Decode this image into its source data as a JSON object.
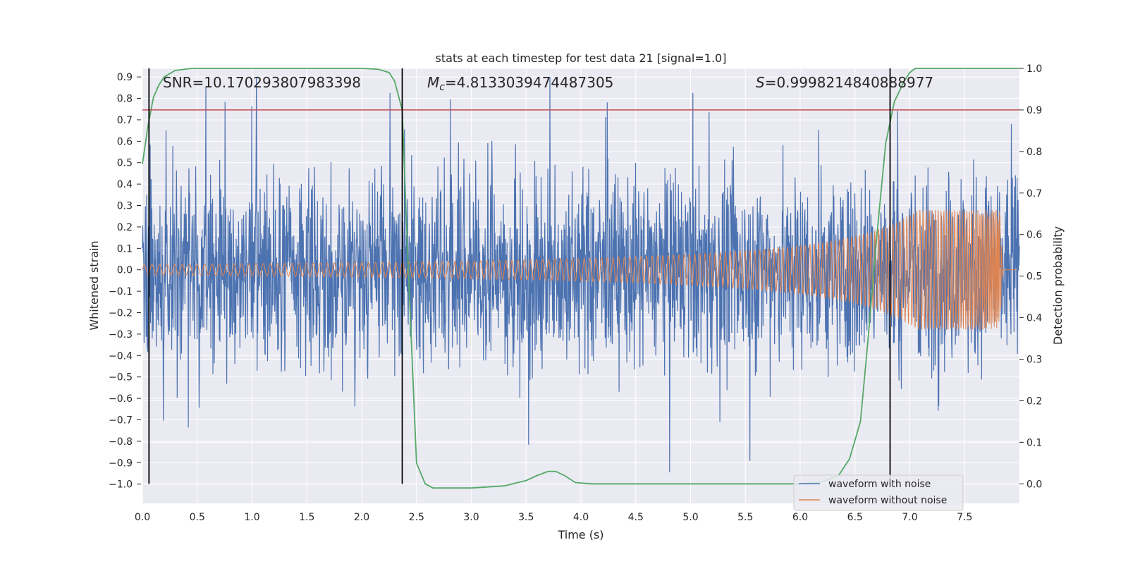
{
  "chart_data": {
    "type": "line",
    "title": "stats at each timestep for test data 21 [signal=1.0]",
    "xlabel": "Time (s)",
    "ylabel": "Whitened strain",
    "y2label": "Detection probability",
    "xlim": [
      0.0,
      8.0
    ],
    "ylim": [
      -1.09,
      0.94
    ],
    "y2lim": [
      -0.047,
      1.0
    ],
    "xticks": [
      0.0,
      0.5,
      1.0,
      1.5,
      2.0,
      2.5,
      3.0,
      3.5,
      4.0,
      4.5,
      5.0,
      5.5,
      6.0,
      6.5,
      7.0,
      7.5
    ],
    "xtick_labels": [
      "0.0",
      "0.5",
      "1.0",
      "1.5",
      "2.0",
      "2.5",
      "3.0",
      "3.5",
      "4.0",
      "4.5",
      "5.0",
      "5.5",
      "6.0",
      "6.5",
      "7.0",
      "7.5"
    ],
    "yticks": [
      0.9,
      0.8,
      0.7,
      0.6,
      0.5,
      0.4,
      0.3,
      0.2,
      0.1,
      0.0,
      -0.1,
      -0.2,
      -0.3,
      -0.4,
      -0.5,
      -0.6,
      -0.7,
      -0.8,
      -0.9,
      -1.0
    ],
    "ytick_labels": [
      "0.9",
      "0.8",
      "0.7",
      "0.6",
      "0.5",
      "0.4",
      "0.3",
      "0.2",
      "0.1",
      "0.0",
      "−0.1",
      "−0.2",
      "−0.3",
      "−0.4",
      "−0.5",
      "−0.6",
      "−0.7",
      "−0.8",
      "−0.9",
      "−1.0"
    ],
    "y2ticks": [
      1.0,
      0.9,
      0.8,
      0.7,
      0.6,
      0.5,
      0.4,
      0.3,
      0.2,
      0.1,
      0.0
    ],
    "y2tick_labels": [
      "1.0",
      "0.9",
      "0.8",
      "0.7",
      "0.6",
      "0.5",
      "0.4",
      "0.3",
      "0.2",
      "0.1",
      "0.0"
    ],
    "annotations": {
      "snr": "SNR=10.170293807983398",
      "mc_symbol": "M",
      "mc_sub": "c",
      "mc_value": "=4.8133039474487305",
      "s_symbol": "S",
      "s_value": "=0.9998214840888977"
    },
    "legend": [
      "waveform with noise",
      "waveform without noise"
    ],
    "legend_position": "lower-right",
    "vertical_lines_x": [
      0.06,
      2.37,
      6.82
    ],
    "threshold_probability": 0.9,
    "noise": {
      "name": "waveform with noise",
      "color": "#4c72b0",
      "amplitude_typical": 0.45,
      "amplitude_max": 0.9,
      "amplitude_min": -0.99
    },
    "chirp": {
      "name": "waveform without noise",
      "color": "#dd8452",
      "start_amplitude": 0.025,
      "peak_time": 7.82,
      "peak_amplitude": 0.28,
      "end_time": 7.85
    },
    "probability": {
      "name": "Detection probability",
      "color": "#55a868",
      "x": [
        0.0,
        0.05,
        0.1,
        0.15,
        0.2,
        0.3,
        0.45,
        1.0,
        2.0,
        2.15,
        2.25,
        2.3,
        2.37,
        2.42,
        2.5,
        2.58,
        2.65,
        2.8,
        3.0,
        3.3,
        3.5,
        3.6,
        3.7,
        3.77,
        3.85,
        3.95,
        4.1,
        5.0,
        6.0,
        6.2,
        6.35,
        6.45,
        6.55,
        6.62,
        6.7,
        6.78,
        6.86,
        6.95,
        7.0,
        7.05,
        8.0
      ],
      "y": [
        0.77,
        0.86,
        0.93,
        0.96,
        0.98,
        0.995,
        1.0,
        1.0,
        1.0,
        0.998,
        0.99,
        0.97,
        0.9,
        0.55,
        0.05,
        0.0,
        -0.01,
        -0.01,
        -0.01,
        -0.005,
        0.008,
        0.02,
        0.03,
        0.03,
        0.02,
        0.003,
        0.0,
        0.0,
        0.0,
        0.005,
        0.02,
        0.06,
        0.15,
        0.35,
        0.6,
        0.82,
        0.92,
        0.97,
        0.99,
        1.0,
        1.0
      ]
    },
    "colors": {
      "background": "#eaeaf2",
      "grid": "#ffffff",
      "threshold": "#c44e52",
      "vline": "#000000"
    }
  }
}
